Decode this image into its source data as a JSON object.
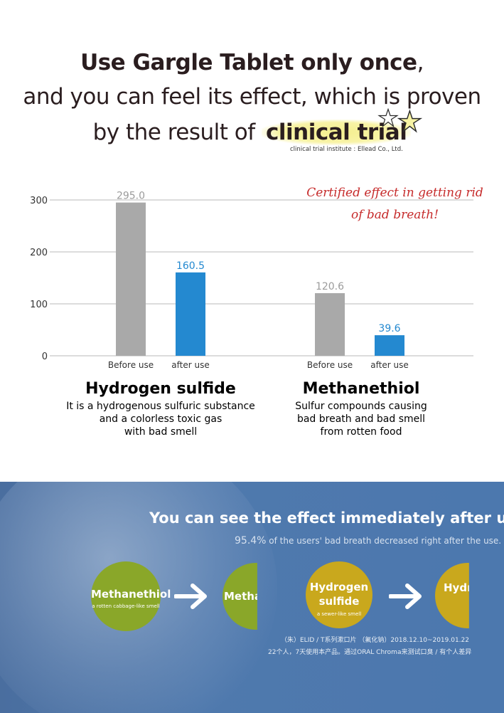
{
  "header": {
    "line1": "Use Gargle Tablet only once",
    "line1_tail": ",",
    "line2": "and you can feel its effect, which is proven",
    "line3_pre": "by the result of ",
    "line3_highlight": "clinical trial",
    "institute": "clinical trial institute : Ellead Co., Ltd."
  },
  "callout": {
    "line1": "Certified effect in getting rid",
    "line2": "of bad breath!"
  },
  "chart_data": {
    "type": "bar",
    "groups": [
      "Hydrogen sulfide",
      "Methanethiol"
    ],
    "categories": [
      "Before use",
      "after use"
    ],
    "series_colors": [
      "#a9a9a9",
      "#2489d0"
    ],
    "label_colors": [
      "#9b9b9b",
      "#2489d0"
    ],
    "values": [
      [
        295.0,
        160.5
      ],
      [
        120.6,
        39.6
      ]
    ],
    "value_labels": [
      [
        "295.0",
        "160.5"
      ],
      [
        "120.6",
        "39.6"
      ]
    ],
    "yticks": [
      "0",
      "100",
      "200",
      "300"
    ],
    "ylim": [
      0,
      300
    ],
    "grid": true
  },
  "descriptions": [
    {
      "title": "Hydrogen sulfide",
      "lines": [
        "It is a hydrogenous sulfuric substance",
        "and a colorless toxic gas",
        "with bad smell"
      ]
    },
    {
      "title": "Methanethiol",
      "lines": [
        "Sulfur compounds causing",
        "bad breath and bad smell",
        "from rotten food"
      ]
    }
  ],
  "effect": {
    "title": "You can see the effect immediately after use.",
    "sub_value": "95.4",
    "sub_pct": "%",
    "sub_text": " of the users' bad breath decreased right after the use.",
    "circles": [
      {
        "name": "Methanethiol",
        "sub": "a rotten cabbage-like smell",
        "color": "#8aa729"
      },
      {
        "name": "Metha",
        "sub": "",
        "color": "#8aa729"
      },
      {
        "name_l1": "Hydrogen",
        "name_l2": "sulfide",
        "sub": "a sewer-like smell",
        "color": "#c9a81d"
      },
      {
        "name": "Hydr",
        "sub": "",
        "color": "#c9a81d"
      }
    ],
    "footnote1": "（朱）ELID / T系列漱口片 （氟化钠）2018.12.10~2019.01.22",
    "footnote2": "22个人，7天使用本产品。通过ORAL Chroma来测试口臭 / 有个人差异"
  }
}
